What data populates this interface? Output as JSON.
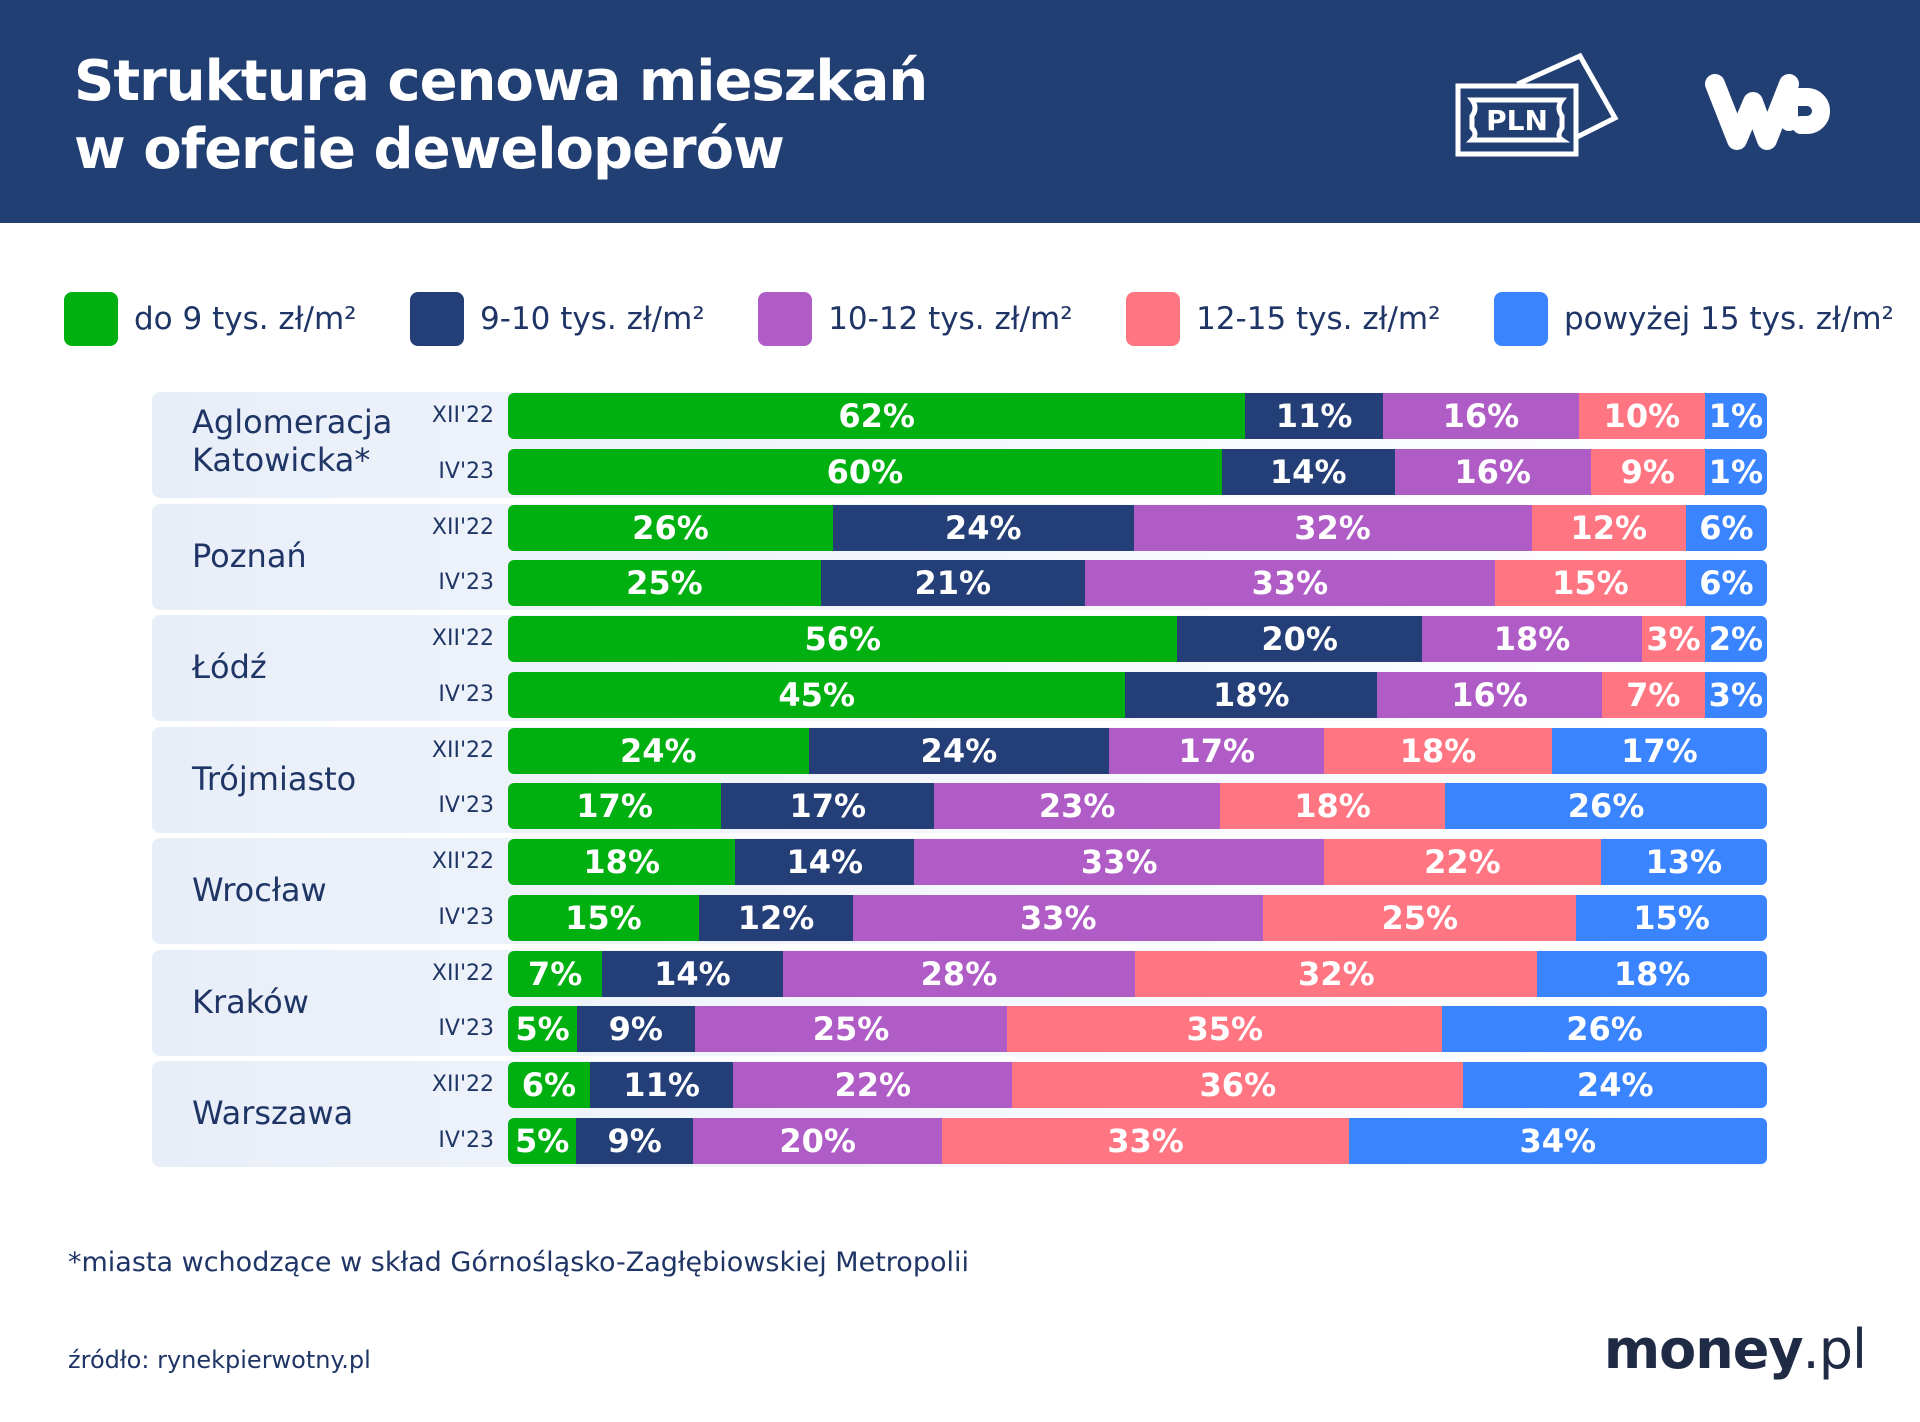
{
  "header": {
    "title_line1": "Struktura cenowa mieszkań",
    "title_line2": "w ofercie deweloperów",
    "currency_badge": "PLN",
    "logo": "WP"
  },
  "chart_data": {
    "type": "bar",
    "orientation": "horizontal",
    "stacked": "100%",
    "title": "Struktura cenowa mieszkań w ofercie deweloperów",
    "legend_position": "top",
    "series": [
      {
        "name": "do 9 tys. zł/m²",
        "color": "#00b010"
      },
      {
        "name": "9-10 tys. zł/m²",
        "color": "#243f77"
      },
      {
        "name": "10-12 tys. zł/m²",
        "color": "#b05cc6"
      },
      {
        "name": "12-15 tys. zł/m²",
        "color": "#ff7682"
      },
      {
        "name": "powyżej 15 tys. zł/m²",
        "color": "#3a84ff"
      }
    ],
    "groups": [
      {
        "city": "Aglomeracja Katowicka*",
        "rows": [
          {
            "period": "XII'22",
            "values": [
              62,
              11,
              16,
              10,
              1
            ]
          },
          {
            "period": "IV'23",
            "values": [
              60,
              14,
              16,
              9,
              1
            ]
          }
        ]
      },
      {
        "city": "Poznań",
        "rows": [
          {
            "period": "XII'22",
            "values": [
              26,
              24,
              32,
              12,
              6
            ]
          },
          {
            "period": "IV'23",
            "values": [
              25,
              21,
              33,
              15,
              6
            ]
          }
        ]
      },
      {
        "city": "Łódź",
        "rows": [
          {
            "period": "XII'22",
            "values": [
              56,
              20,
              18,
              3,
              2
            ]
          },
          {
            "period": "IV'23",
            "values": [
              45,
              18,
              16,
              7,
              3
            ]
          }
        ]
      },
      {
        "city": "Trójmiasto",
        "rows": [
          {
            "period": "XII'22",
            "values": [
              24,
              24,
              17,
              18,
              17
            ]
          },
          {
            "period": "IV'23",
            "values": [
              17,
              17,
              23,
              18,
              26
            ]
          }
        ]
      },
      {
        "city": "Wrocław",
        "rows": [
          {
            "period": "XII'22",
            "values": [
              18,
              14,
              33,
              22,
              13
            ]
          },
          {
            "period": "IV'23",
            "values": [
              15,
              12,
              33,
              25,
              15
            ]
          }
        ]
      },
      {
        "city": "Kraków",
        "rows": [
          {
            "period": "XII'22",
            "values": [
              7,
              14,
              28,
              32,
              18
            ]
          },
          {
            "period": "IV'23",
            "values": [
              5,
              9,
              25,
              35,
              26
            ]
          }
        ]
      },
      {
        "city": "Warszawa",
        "rows": [
          {
            "period": "XII'22",
            "values": [
              6,
              11,
              22,
              36,
              24
            ]
          },
          {
            "period": "IV'23",
            "values": [
              5,
              9,
              20,
              33,
              34
            ]
          }
        ]
      }
    ],
    "value_suffix": "%"
  },
  "footnote": "*miasta wchodzące w skład Górnośląsko-Zagłębiowskiej Metropolii",
  "source": "źródło: rynekpierwotny.pl",
  "brand": {
    "name": "money",
    "suffix": ".pl"
  }
}
